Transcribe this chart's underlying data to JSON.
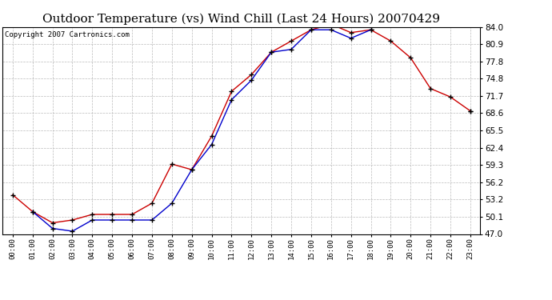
{
  "title": "Outdoor Temperature (vs) Wind Chill (Last 24 Hours) 20070429",
  "copyright": "Copyright 2007 Cartronics.com",
  "x_labels": [
    "00:00",
    "01:00",
    "02:00",
    "03:00",
    "04:00",
    "05:00",
    "06:00",
    "07:00",
    "08:00",
    "09:00",
    "10:00",
    "11:00",
    "12:00",
    "13:00",
    "14:00",
    "15:00",
    "16:00",
    "17:00",
    "18:00",
    "19:00",
    "20:00",
    "21:00",
    "22:00",
    "23:00"
  ],
  "outdoor_temp": [
    54.0,
    51.0,
    49.0,
    49.5,
    50.5,
    50.5,
    50.5,
    52.5,
    59.5,
    58.5,
    64.5,
    72.5,
    75.5,
    79.5,
    81.5,
    83.5,
    84.5,
    83.0,
    83.5,
    81.5,
    78.5,
    73.0,
    71.5,
    69.0
  ],
  "wind_chill": [
    null,
    51.0,
    48.0,
    47.5,
    49.5,
    49.5,
    49.5,
    49.5,
    52.5,
    58.5,
    63.0,
    71.0,
    74.5,
    79.5,
    80.0,
    83.5,
    83.5,
    82.0,
    83.5,
    null,
    null,
    null,
    null,
    69.0
  ],
  "outdoor_color": "#cc0000",
  "windchill_color": "#0000cc",
  "background_color": "#ffffff",
  "plot_bg_color": "#ffffff",
  "grid_color": "#bbbbbb",
  "ylim": [
    47.0,
    84.0
  ],
  "yticks": [
    47.0,
    50.1,
    53.2,
    56.2,
    59.3,
    62.4,
    65.5,
    68.6,
    71.7,
    74.8,
    77.8,
    80.9,
    84.0
  ],
  "title_fontsize": 11,
  "copyright_fontsize": 6.5
}
